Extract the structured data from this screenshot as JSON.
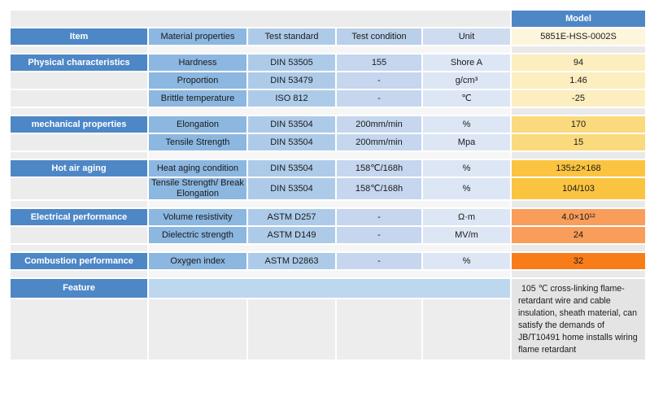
{
  "header": {
    "model_label": "Model",
    "model_value": "5851E-HSS-0002S",
    "columns": {
      "item": "Item",
      "material": "Material properties",
      "standard": "Test standard",
      "condition": "Test condition",
      "unit": "Unit"
    }
  },
  "sections": [
    {
      "label": "Physical characteristics",
      "rows": [
        {
          "material": "Hardness",
          "standard": "DIN 53505",
          "condition": "155",
          "unit": "Shore A",
          "value": "94"
        },
        {
          "material": "Proportion",
          "standard": "DIN 53479",
          "condition": "-",
          "unit": "g/cm³",
          "value": "1.46"
        },
        {
          "material": "Brittle temperature",
          "standard": "ISO 812",
          "condition": "-",
          "unit": "℃",
          "value": "-25"
        }
      ]
    },
    {
      "label": "mechanical properties",
      "rows": [
        {
          "material": "Elongation",
          "standard": "DIN 53504",
          "condition": "200mm/min",
          "unit": "%",
          "value": "170"
        },
        {
          "material": "Tensile Strength",
          "standard": "DIN 53504",
          "condition": "200mm/min",
          "unit": "Mpa",
          "value": "15"
        }
      ]
    },
    {
      "label": "Hot air aging",
      "rows": [
        {
          "material": "Heat aging condition",
          "standard": "DIN 53504",
          "condition": "158℃/168h",
          "unit": "%",
          "value": "135±2×168"
        },
        {
          "material": "Tensile Strength/ Break Elongation",
          "standard": "DIN 53504",
          "condition": "158℃/168h",
          "unit": "%",
          "value": "104/103"
        }
      ]
    },
    {
      "label": "Electrical performance",
      "rows": [
        {
          "material": "Volume resistivity",
          "standard": "ASTM D257",
          "condition": "-",
          "unit": "Ω·m",
          "value": "4.0×10¹²"
        },
        {
          "material": "Dielectric strength",
          "standard": "ASTM D149",
          "condition": "-",
          "unit": "MV/m",
          "value": "24"
        }
      ]
    },
    {
      "label": "Combustion performance",
      "rows": [
        {
          "material": "Oxygen index",
          "standard": "ASTM D2863",
          "condition": "-",
          "unit": "%",
          "value": "32"
        }
      ]
    }
  ],
  "feature": {
    "label": "Feature",
    "text": "105 ℃ cross-linking flame-retardant wire and cable insulation, sheath material, can satisfy the demands of JB/T10491 home installs wiring flame retardant"
  },
  "colors": {
    "header_blue": "#4e87c6",
    "material_col_blue": "#8cb7e0",
    "standard_col_blue": "#adcbe9",
    "condition_col_blue": "#c5d6ee",
    "unit_col_blue": "#dde6f4",
    "feature_band_blue": "#bdd7ee",
    "model_id_bg": "#fdf5dc",
    "physical_value_bg": "#fceebf",
    "mechanical_value_bg": "#fbd97d",
    "hot_air_value_bg": "#fbc440",
    "electrical_value_bg": "#f99d5b",
    "combustion_value_bg": "#f87d18",
    "feature_text_bg": "#e4e4e4",
    "blank_gray": "#ececec"
  }
}
